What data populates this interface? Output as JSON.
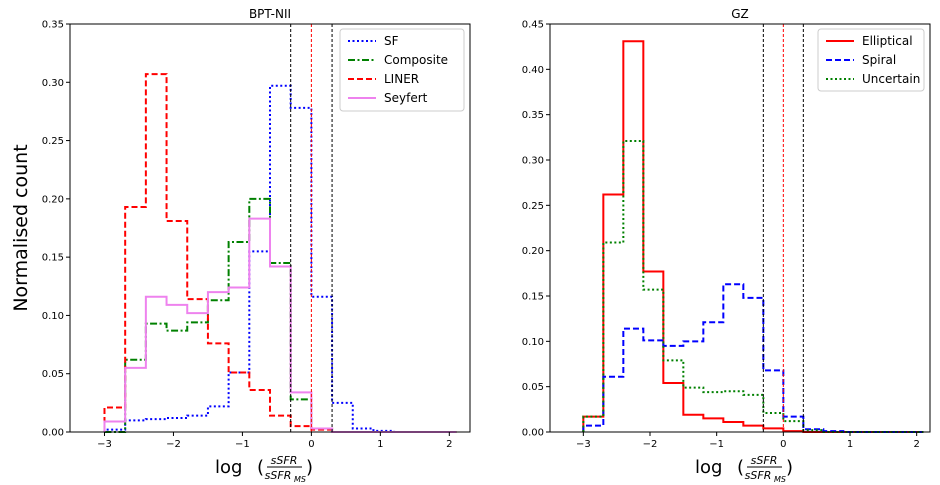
{
  "figure": {
    "ylabel": "Normalised count",
    "xlabel_parts": {
      "log": "log",
      "lparen": "(",
      "num": "sSFR",
      "den": "sSFR",
      "den_sub": "MS",
      "rparen": ")"
    }
  },
  "chart_data": [
    {
      "type": "line",
      "step": true,
      "title": "BPT-NII",
      "xlim": [
        -3.5,
        2.3
      ],
      "ylim": [
        0,
        0.35
      ],
      "xticks": [
        -3,
        -2,
        -1,
        0,
        1,
        2
      ],
      "xtick_labels": [
        "−3",
        "−2",
        "−1",
        "0",
        "1",
        "2"
      ],
      "yticks": [
        0.0,
        0.05,
        0.1,
        0.15,
        0.2,
        0.25,
        0.3,
        0.35
      ],
      "ytick_labels": [
        "0.00",
        "0.05",
        "0.10",
        "0.15",
        "0.20",
        "0.25",
        "0.30",
        "0.35"
      ],
      "bin_edges": [
        -3.0,
        -2.7,
        -2.4,
        -2.1,
        -1.8,
        -1.5,
        -1.2,
        -0.9,
        -0.6,
        -0.3,
        0.0,
        0.3,
        0.6,
        0.9,
        1.2,
        1.5,
        1.8,
        2.1
      ],
      "vlines": [
        {
          "x": -0.3,
          "color": "#000000"
        },
        {
          "x": 0.0,
          "color": "#ff0000"
        },
        {
          "x": 0.3,
          "color": "#000000"
        }
      ],
      "legend_position": "top-right",
      "series": [
        {
          "name": "SF",
          "color": "#0000ff",
          "style": "dotted",
          "values": [
            0.002,
            0.01,
            0.011,
            0.012,
            0.014,
            0.022,
            0.051,
            0.155,
            0.297,
            0.278,
            0.116,
            0.025,
            0.003,
            0.001,
            0.0,
            0.0,
            0.0
          ]
        },
        {
          "name": "Composite",
          "color": "#008000",
          "style": "dashdot",
          "values": [
            0.0,
            0.062,
            0.093,
            0.087,
            0.094,
            0.113,
            0.163,
            0.2,
            0.145,
            0.028,
            0.003,
            0.0,
            0.0,
            0.0,
            0.0,
            0.0,
            0.0
          ]
        },
        {
          "name": "LINER",
          "color": "#ff0000",
          "style": "dashed",
          "values": [
            0.021,
            0.193,
            0.307,
            0.181,
            0.114,
            0.076,
            0.051,
            0.036,
            0.014,
            0.005,
            0.002,
            0.0,
            0.0,
            0.0,
            0.0,
            0.0,
            0.0
          ]
        },
        {
          "name": "Seyfert",
          "color": "#ee82ee",
          "style": "solid",
          "values": [
            0.009,
            0.055,
            0.116,
            0.109,
            0.102,
            0.12,
            0.124,
            0.183,
            0.142,
            0.034,
            0.003,
            0.0,
            0.0,
            0.0,
            0.0,
            0.0,
            0.0
          ]
        }
      ]
    },
    {
      "type": "line",
      "step": true,
      "title": "GZ",
      "xlim": [
        -3.5,
        2.2
      ],
      "ylim": [
        0,
        0.45
      ],
      "xticks": [
        -3,
        -2,
        -1,
        0,
        1,
        2
      ],
      "xtick_labels": [
        "−3",
        "−2",
        "−1",
        "0",
        "1",
        "2"
      ],
      "yticks": [
        0.0,
        0.05,
        0.1,
        0.15,
        0.2,
        0.25,
        0.3,
        0.35,
        0.4,
        0.45
      ],
      "ytick_labels": [
        "0.00",
        "0.05",
        "0.10",
        "0.15",
        "0.20",
        "0.25",
        "0.30",
        "0.35",
        "0.40",
        "0.45"
      ],
      "bin_edges": [
        -3.0,
        -2.7,
        -2.4,
        -2.1,
        -1.8,
        -1.5,
        -1.2,
        -0.9,
        -0.6,
        -0.3,
        0.0,
        0.3,
        0.6,
        0.9,
        1.2,
        1.5,
        1.8,
        2.1
      ],
      "vlines": [
        {
          "x": -0.3,
          "color": "#000000"
        },
        {
          "x": 0.0,
          "color": "#ff0000"
        },
        {
          "x": 0.3,
          "color": "#000000"
        }
      ],
      "legend_position": "top-right",
      "series": [
        {
          "name": "Elliptical",
          "color": "#ff0000",
          "style": "solid",
          "values": [
            0.017,
            0.262,
            0.431,
            0.177,
            0.054,
            0.019,
            0.015,
            0.011,
            0.007,
            0.004,
            0.001,
            0.0,
            0.0,
            0.0,
            0.0,
            0.0,
            0.0
          ]
        },
        {
          "name": "Spiral",
          "color": "#0000ff",
          "style": "dashed",
          "values": [
            0.007,
            0.061,
            0.114,
            0.101,
            0.095,
            0.1,
            0.121,
            0.163,
            0.148,
            0.068,
            0.017,
            0.003,
            0.001,
            0.0,
            0.0,
            0.0,
            0.0
          ]
        },
        {
          "name": "Uncertain",
          "color": "#008000",
          "style": "dotted",
          "values": [
            0.017,
            0.209,
            0.321,
            0.157,
            0.079,
            0.049,
            0.044,
            0.045,
            0.041,
            0.021,
            0.012,
            0.002,
            0.0,
            0.0,
            0.0,
            0.0,
            0.0
          ]
        }
      ]
    }
  ]
}
